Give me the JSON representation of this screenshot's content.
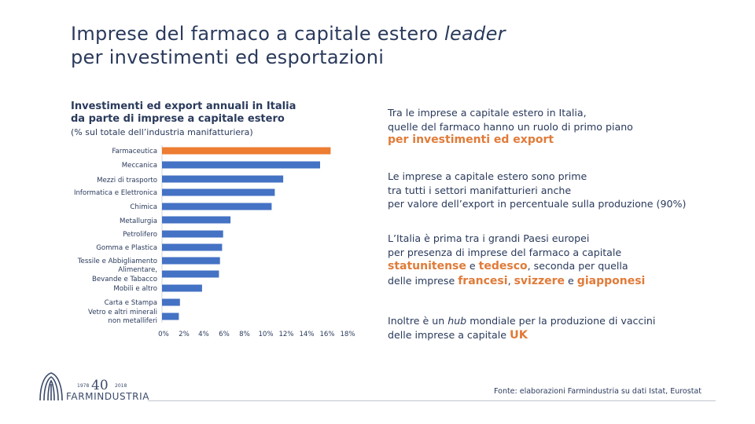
{
  "slide": {
    "title_line1": "Imprese del farmaco a capitale estero ",
    "title_line1_italic": "leader",
    "title_line2": "per investimenti ed esportazioni"
  },
  "chart_header": {
    "title": "Investimenti ed export annuali in Italia da parte di imprese a capitale estero",
    "subtitle": "(% sul totale dell’industria manifatturiera)"
  },
  "chart_data": {
    "type": "bar",
    "orientation": "horizontal",
    "categories": [
      "Farmaceutica",
      "Meccanica",
      "Mezzi di trasporto",
      "Informatica e Elettronica",
      "Chimica",
      "Metallurgia",
      "Petrolifero",
      "Gomma e Plastica",
      "Tessile e Abbigliamento",
      "Alimentare, Bevande e Tabacco",
      "Mobili e altro",
      "Carta e Stampa",
      "Vetro e altri minerali non metalliferi"
    ],
    "values": [
      16.0,
      15.0,
      11.5,
      10.7,
      10.4,
      6.5,
      5.8,
      5.7,
      5.5,
      5.4,
      3.8,
      1.7,
      1.6
    ],
    "highlight_index": 0,
    "colors": {
      "bar": "#4472c4",
      "highlight": "#ed7d31"
    },
    "xlim": [
      0,
      18
    ],
    "xticks": [
      "0%",
      "2%",
      "4%",
      "6%",
      "8%",
      "10%",
      "12%",
      "14%",
      "16%",
      "18%"
    ],
    "title": "Investimenti ed export annuali in Italia da parte di imprese a capitale estero",
    "xlabel": "",
    "ylabel": ""
  },
  "right_panel": {
    "p1_line1": "Tra le imprese a capitale estero in Italia,",
    "p1_line2": "quelle del farmaco hanno un ruolo di primo piano",
    "p1_highlight": "per investimenti ed export",
    "p2_line1": "Le imprese a capitale estero sono prime",
    "p2_line2": "tra tutti i settori manifatturieri anche",
    "p2_line3": "per valore dell’export in percentuale sulla produzione (90%)",
    "p3_line1": "L’Italia è prima tra i grandi Paesi europei",
    "p3_line2": "per presenza di imprese del farmaco a capitale",
    "p3_hl1": "statunitense",
    "p3_and": " e ",
    "p3_hl2": "tedesco",
    "p3_rest": ", seconda per quella",
    "p3_line4_pre": "delle imprese ",
    "p3_hl3": "francesi",
    "p3_comma": ", ",
    "p3_hl4": "svizzere",
    "p3_e": " e ",
    "p3_hl5": "giapponesi",
    "p4_pre": "Inoltre è un ",
    "p4_italic": "hub",
    "p4_post": " mondiale per la produzione di vaccini",
    "p4_line2": "delle imprese a capitale ",
    "p4_hl": "UK"
  },
  "footer": {
    "source": "Fonte: elaborazioni Farmindustria su dati Istat, Eurostat",
    "logo_name": "FARMINDUSTRIA",
    "logo_number": "40",
    "logo_year_start": "1978",
    "logo_year_end": "2018"
  }
}
